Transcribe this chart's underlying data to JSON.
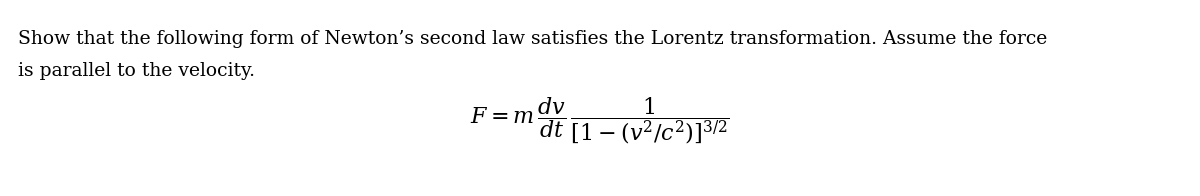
{
  "background_color": "#ffffff",
  "text_line1": "Show that the following form of Newton’s second law satisfies the Lorentz transformation. Assume the force",
  "text_line2": "is parallel to the velocity.",
  "formula": "$F = m\\,\\dfrac{dv}{dt}\\,\\dfrac{1}{[1-(v^2/c^2)]^{3/2}}$",
  "text_fontsize": 13.5,
  "formula_fontsize": 16,
  "text_color": "#000000",
  "fig_width": 12.0,
  "fig_height": 1.96,
  "dpi": 100
}
